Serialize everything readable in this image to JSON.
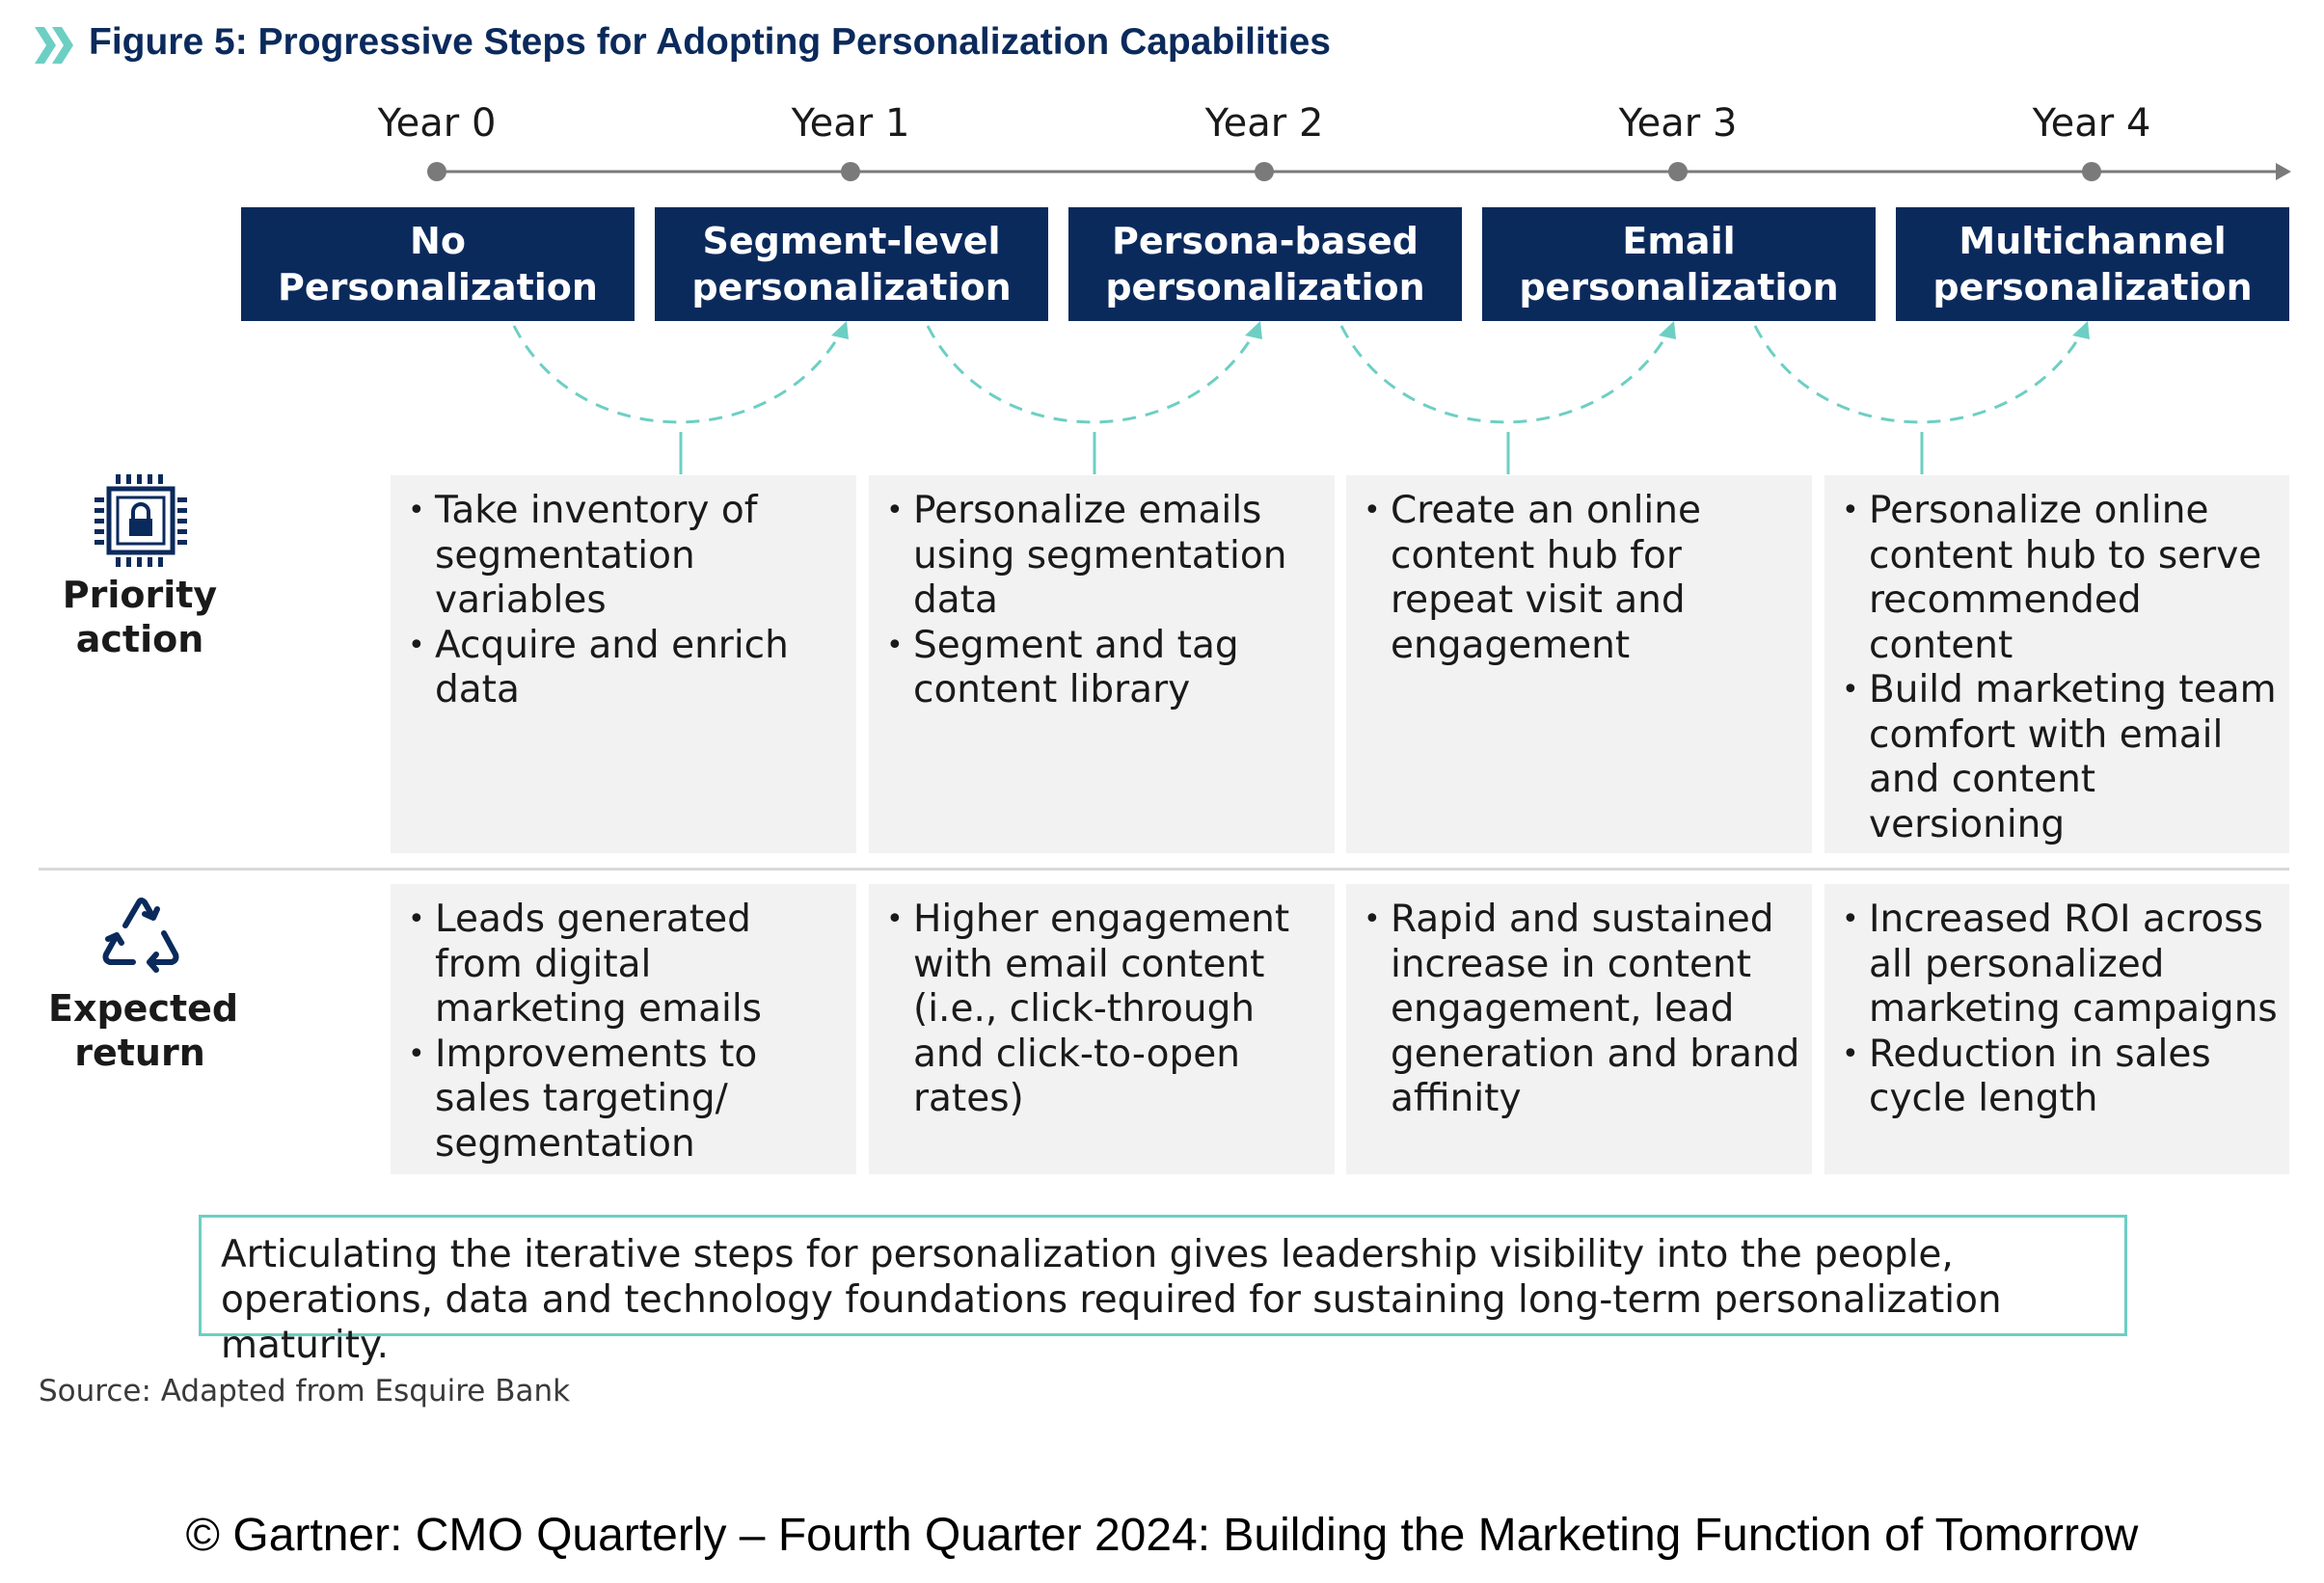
{
  "figure": {
    "title": "Figure 5: Progressive Steps for Adopting Personalization Capabilities",
    "accent_color": "#6dcfc3",
    "navy_color": "#0b2a5c"
  },
  "timeline": {
    "years": [
      "Year 0",
      "Year 1",
      "Year 2",
      "Year 3",
      "Year 4"
    ]
  },
  "stages": [
    {
      "line1": "No",
      "line2": "Personalization"
    },
    {
      "line1": "Segment-level",
      "line2": "personalization"
    },
    {
      "line1": "Persona-based",
      "line2": "personalization"
    },
    {
      "line1": "Email",
      "line2": "personalization"
    },
    {
      "line1": "Multichannel",
      "line2": "personalization"
    }
  ],
  "rows": {
    "priority": {
      "label_line1": "Priority",
      "label_line2": "action",
      "icon": "chip-lock-icon",
      "cells": [
        [
          "Take inventory of segmentation variables",
          "Acquire and enrich data"
        ],
        [
          "Personalize emails using segmentation data",
          "Segment and tag content library"
        ],
        [
          "Create an online content hub for repeat visit and engagement"
        ],
        [
          "Personalize online content hub to serve recommended content",
          "Build marketing team comfort with email and content versioning"
        ]
      ]
    },
    "return": {
      "label_line1": "Expected",
      "label_line2": "return",
      "icon": "recycle-arrows-icon",
      "cells": [
        [
          "Leads generated from digital marketing emails",
          "Improvements to sales targeting/ segmentation"
        ],
        [
          "Higher engagement with email content (i.e., click-through and click-to-open rates)"
        ],
        [
          "Rapid and sustained increase in content engagement, lead generation and brand affinity"
        ],
        [
          "Increased ROI across all personalized marketing campaigns",
          "Reduction in sales cycle length"
        ]
      ]
    }
  },
  "callout": "Articulating the iterative steps for personalization gives leadership visibility into the people, operations, data and technology foundations required for sustaining long-term personalization maturity.",
  "source": "Source: Adapted from Esquire Bank",
  "copyright": "© Gartner: CMO Quarterly – Fourth Quarter 2024: Building the Marketing Function of Tomorrow"
}
